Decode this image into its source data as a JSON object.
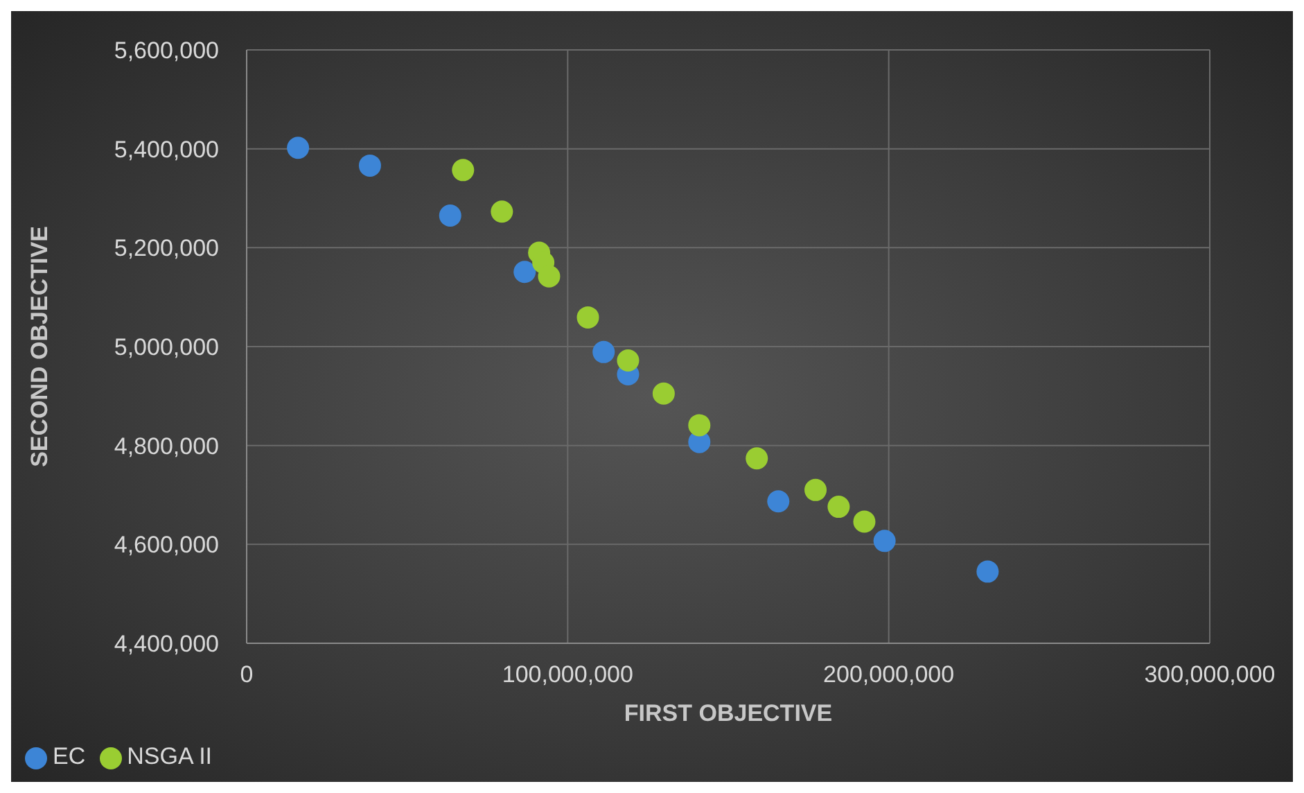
{
  "chart_data": {
    "type": "scatter",
    "xlabel": "FIRST OBJECTIVE",
    "ylabel": "SECOND OBJECTIVE",
    "xlim": [
      0,
      300000000
    ],
    "xticks": [
      {
        "value": 0,
        "label": "0"
      },
      {
        "value": 100000000,
        "label": "100,000,000"
      },
      {
        "value": 200000000,
        "label": "200,000,000"
      },
      {
        "value": 300000000,
        "label": "300,000,000"
      }
    ],
    "ylim": [
      4400000,
      5600000
    ],
    "yticks": [
      {
        "value": 4400000,
        "label": "4,400,000"
      },
      {
        "value": 4600000,
        "label": "4,600,000"
      },
      {
        "value": 4800000,
        "label": "4,800,000"
      },
      {
        "value": 5000000,
        "label": "5,000,000"
      },
      {
        "value": 5200000,
        "label": "5,200,000"
      },
      {
        "value": 5400000,
        "label": "5,400,000"
      },
      {
        "value": 5600000,
        "label": "5,600,000"
      }
    ],
    "grid": true,
    "legend": "bottom left",
    "marker": "circle",
    "series": [
      {
        "name": "EC",
        "color": "#3d85d6",
        "x": [
          16000000,
          38400000,
          63400000,
          86600000,
          111200000,
          118800000,
          141000000,
          165600000,
          198700000,
          230800000
        ],
        "values": [
          5402000,
          5366000,
          5265000,
          5151000,
          4989000,
          4944000,
          4807000,
          4687000,
          4607000,
          4545000
        ]
      },
      {
        "name": "NSGA II",
        "color": "#9acd32",
        "x": [
          67400000,
          79500000,
          91100000,
          92400000,
          94200000,
          106300000,
          118800000,
          129900000,
          141000000,
          158900000,
          177200000,
          184400000,
          192400000
        ],
        "values": [
          5357000,
          5273000,
          5190000,
          5170000,
          5142000,
          5059000,
          4972000,
          4905000,
          4841000,
          4774000,
          4710000,
          4676000,
          4646000
        ]
      }
    ]
  }
}
